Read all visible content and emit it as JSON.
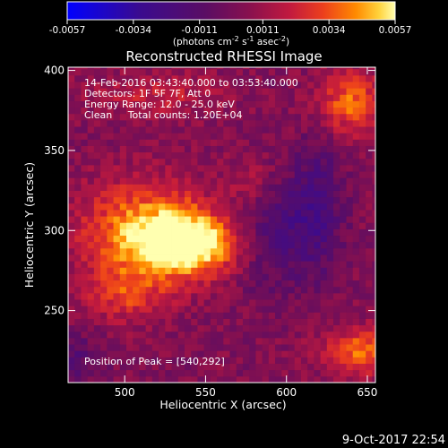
{
  "chart_data": {
    "type": "heatmap",
    "title": "Reconstructed RHESSI Image",
    "xlabel": "Heliocentric X (arcsec)",
    "ylabel": "Heliocentric Y (arcsec)",
    "xlim": [
      465,
      655
    ],
    "ylim": [
      205,
      402
    ],
    "x_ticks": [
      500,
      550,
      600,
      650
    ],
    "y_ticks": [
      250,
      300,
      350,
      400
    ],
    "annotations": [
      "14-Feb-2016 03:43:40.000 to 03:53:40.000",
      "Detectors: 1F 5F 7F, Att 0",
      "Energy Range: 12.0 - 25.0 keV",
      "Clean     Total counts: 1.20E+04"
    ],
    "peak_label": "Position of Peak = [540,292]",
    "peak": [
      540,
      292
    ],
    "colorbar": {
      "min": -0.0057,
      "max": 0.0057,
      "ticks": [
        "-0.0057",
        "-0.0034",
        "-0.0011",
        "0.0011",
        "0.0034",
        "0.0057"
      ],
      "units": "(photons cm<sup>-2</sup> s<sup>-1</sup> asec<sup>-2</sup>)"
    },
    "sources": [
      {
        "x": 540,
        "y": 292,
        "amplitude": 0.0057,
        "sx": 22,
        "sy": 14
      },
      {
        "x": 510,
        "y": 300,
        "amplitude": 0.0038,
        "sx": 28,
        "sy": 22
      },
      {
        "x": 640,
        "y": 380,
        "amplitude": 0.0034,
        "sx": 15,
        "sy": 14
      },
      {
        "x": 648,
        "y": 225,
        "amplitude": 0.0036,
        "sx": 18,
        "sy": 10
      },
      {
        "x": 500,
        "y": 260,
        "amplitude": 0.0022,
        "sx": 18,
        "sy": 12
      },
      {
        "x": 520,
        "y": 385,
        "amplitude": 0.0016,
        "sx": 30,
        "sy": 10
      },
      {
        "x": 578,
        "y": 330,
        "amplitude": 0.0015,
        "sx": 12,
        "sy": 12
      },
      {
        "x": 595,
        "y": 300,
        "amplitude": -0.0022,
        "sx": 20,
        "sy": 25
      },
      {
        "x": 620,
        "y": 320,
        "amplitude": -0.0018,
        "sx": 10,
        "sy": 30
      },
      {
        "x": 470,
        "y": 220,
        "amplitude": -0.0015,
        "sx": 12,
        "sy": 12
      }
    ],
    "grid": false,
    "legend": "colorbar-top"
  },
  "footer": {
    "date": "9-Oct-2017 22:54"
  },
  "colors": {
    "background": "#000000",
    "foreground": "#ffffff",
    "colormap": [
      "#0000ff",
      "#3a0b8f",
      "#5a0d64",
      "#7c0f52",
      "#b3134a",
      "#e0302a",
      "#ff7a00",
      "#ffcc33",
      "#ffffb0"
    ]
  }
}
